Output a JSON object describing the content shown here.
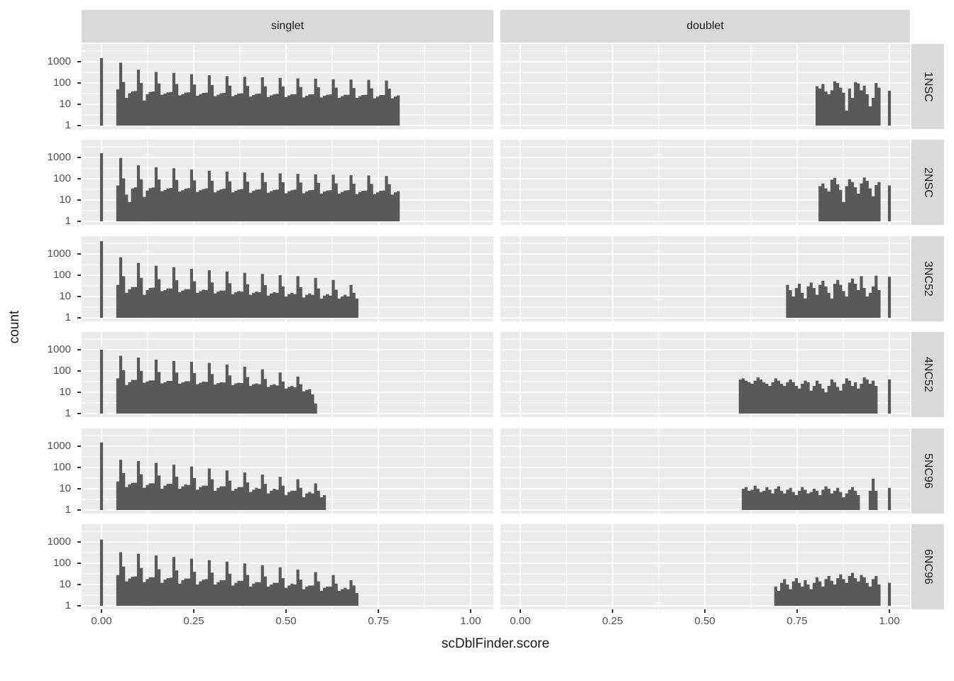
{
  "colors": {
    "bar_fill": "#595959",
    "panel_background": "#EBEBEB",
    "strip_background": "#D9D9D9",
    "gridline": "#FFFFFF",
    "axis_text": "#4D4D4D",
    "tick_mark": "#333333",
    "title_text": "#1A1A1A"
  },
  "chart_data": {
    "type": "bar",
    "subtype": "faceted_histogram",
    "title": "",
    "x_label": "scDblFinder.score",
    "y_label": "count",
    "y_scale": "log10",
    "grid": "on",
    "legend": "none",
    "x_axis": {
      "tick_labels": [
        "0.00",
        "0.25",
        "0.50",
        "0.75",
        "1.00"
      ],
      "tick_values": [
        0,
        0.25,
        0.5,
        0.75,
        1.0
      ],
      "range": [
        -0.054,
        1.056
      ]
    },
    "y_axis": {
      "tick_labels": [
        "1000",
        "100",
        "10",
        "1"
      ],
      "tick_values": [
        1000,
        100,
        10,
        1
      ],
      "range_log10": [
        -0.17,
        3.83
      ]
    },
    "facet_columns": [
      "singlet",
      "doublet"
    ],
    "facet_rows": [
      "1NSC",
      "2NSC",
      "3NC52",
      "4NC52",
      "5NC96",
      "6NC96"
    ],
    "binwidth": 0.008,
    "panels": [
      {
        "row": "1NSC",
        "col": "singlet",
        "bar_at_zero": 1500,
        "start": 0.04,
        "bar_at_one": null,
        "counts": [
          50,
          900,
          110,
          20,
          33,
          40,
          42,
          420,
          100,
          15,
          30,
          38,
          40,
          330,
          95,
          28,
          32,
          36,
          38,
          300,
          90,
          26,
          30,
          35,
          36,
          260,
          85,
          25,
          30,
          34,
          35,
          230,
          80,
          24,
          28,
          33,
          34,
          210,
          75,
          24,
          28,
          32,
          33,
          195,
          72,
          23,
          27,
          31,
          32,
          185,
          70,
          22,
          26,
          30,
          31,
          175,
          68,
          22,
          26,
          30,
          30,
          165,
          65,
          21,
          25,
          29,
          30,
          160,
          63,
          21,
          25,
          28,
          29,
          150,
          60,
          20,
          24,
          28,
          28,
          145,
          58,
          20,
          24,
          27,
          28,
          140,
          56,
          19,
          23,
          27,
          27,
          130,
          54,
          19,
          23,
          26
        ]
      },
      {
        "row": "1NSC",
        "col": "doublet",
        "bar_at_zero": null,
        "start": 0.8,
        "bar_at_one": 43,
        "counts": [
          70,
          55,
          90,
          40,
          30,
          45,
          120,
          100,
          60,
          35,
          5,
          55,
          20,
          110,
          95,
          45,
          75,
          30,
          8,
          20,
          100,
          60
        ]
      },
      {
        "row": "2NSC",
        "col": "singlet",
        "bar_at_zero": 1600,
        "start": 0.04,
        "bar_at_one": null,
        "counts": [
          48,
          950,
          105,
          18,
          8,
          35,
          40,
          430,
          95,
          14,
          28,
          36,
          39,
          340,
          92,
          26,
          30,
          35,
          37,
          310,
          88,
          25,
          29,
          34,
          36,
          270,
          84,
          24,
          29,
          33,
          35,
          240,
          80,
          23,
          28,
          32,
          34,
          215,
          76,
          23,
          27,
          31,
          33,
          200,
          73,
          22,
          27,
          31,
          32,
          190,
          70,
          22,
          26,
          30,
          31,
          180,
          68,
          21,
          26,
          29,
          31,
          170,
          66,
          21,
          25,
          29,
          30,
          162,
          64,
          20,
          25,
          28,
          29,
          155,
          61,
          20,
          24,
          28,
          29,
          148,
          59,
          19,
          24,
          27,
          28,
          142,
          57,
          19,
          23,
          27,
          28,
          135,
          55,
          18,
          23,
          26
        ]
      },
      {
        "row": "2NSC",
        "col": "doublet",
        "bar_at_zero": null,
        "start": 0.808,
        "bar_at_one": 48,
        "counts": [
          45,
          60,
          35,
          25,
          90,
          110,
          55,
          30,
          8,
          45,
          95,
          70,
          40,
          20,
          60,
          115,
          80,
          35,
          15,
          50,
          70
        ]
      },
      {
        "row": "3NC52",
        "col": "singlet",
        "bar_at_zero": 4000,
        "start": 0.04,
        "bar_at_one": null,
        "counts": [
          35,
          700,
          90,
          15,
          22,
          28,
          28,
          380,
          75,
          12,
          20,
          25,
          26,
          280,
          65,
          18,
          20,
          24,
          24,
          240,
          58,
          16,
          19,
          22,
          22,
          200,
          52,
          15,
          18,
          21,
          20,
          170,
          46,
          14,
          17,
          19,
          19,
          150,
          42,
          13,
          16,
          18,
          17,
          130,
          38,
          12,
          15,
          17,
          16,
          115,
          34,
          11,
          14,
          16,
          15,
          100,
          30,
          10,
          13,
          15,
          13,
          90,
          27,
          9,
          12,
          14,
          12,
          75,
          24,
          8,
          11,
          13,
          11,
          60,
          21,
          8,
          10,
          12,
          10,
          35,
          15,
          8
        ]
      },
      {
        "row": "3NC52",
        "col": "doublet",
        "bar_at_zero": null,
        "start": 0.72,
        "bar_at_one": 85,
        "counts": [
          35,
          20,
          10,
          25,
          40,
          15,
          8,
          30,
          45,
          25,
          12,
          35,
          55,
          30,
          15,
          8,
          40,
          60,
          35,
          18,
          10,
          45,
          70,
          40,
          20,
          90,
          25,
          10,
          15,
          30,
          95,
          20
        ]
      },
      {
        "row": "4NC52",
        "col": "singlet",
        "bar_at_zero": 1000,
        "start": 0.04,
        "bar_at_one": null,
        "counts": [
          45,
          520,
          110,
          22,
          30,
          38,
          38,
          430,
          100,
          28,
          32,
          36,
          36,
          340,
          90,
          26,
          30,
          34,
          34,
          300,
          85,
          25,
          29,
          33,
          33,
          270,
          80,
          24,
          28,
          32,
          31,
          240,
          72,
          23,
          27,
          30,
          29,
          200,
          62,
          22,
          26,
          28,
          27,
          160,
          52,
          20,
          24,
          26,
          24,
          120,
          42,
          18,
          22,
          24,
          21,
          85,
          32,
          15,
          18,
          20,
          17,
          55,
          24,
          11,
          13,
          14,
          8,
          3
        ]
      },
      {
        "row": "4NC52",
        "col": "doublet",
        "bar_at_zero": null,
        "start": 0.592,
        "bar_at_one": 40,
        "counts": [
          40,
          45,
          35,
          30,
          25,
          35,
          50,
          40,
          30,
          25,
          20,
          30,
          45,
          35,
          25,
          20,
          30,
          40,
          30,
          20,
          15,
          25,
          35,
          30,
          12,
          20,
          35,
          25,
          15,
          10,
          20,
          40,
          30,
          18,
          12,
          25,
          45,
          35,
          20,
          30,
          15,
          25,
          50,
          40,
          25,
          35,
          20
        ]
      },
      {
        "row": "5NC96",
        "col": "singlet",
        "bar_at_zero": 1500,
        "start": 0.04,
        "bar_at_one": null,
        "counts": [
          22,
          230,
          55,
          12,
          16,
          19,
          19,
          200,
          48,
          11,
          15,
          18,
          18,
          165,
          42,
          10,
          14,
          17,
          17,
          135,
          37,
          10,
          13,
          16,
          15,
          110,
          32,
          9,
          12,
          14,
          14,
          90,
          28,
          8,
          11,
          13,
          13,
          72,
          24,
          8,
          10,
          12,
          12,
          58,
          20,
          7,
          9,
          11,
          10,
          46,
          17,
          6,
          8,
          10,
          9,
          36,
          14,
          5,
          7,
          8,
          8,
          28,
          11,
          4,
          6,
          7,
          6,
          18,
          8,
          4,
          5
        ]
      },
      {
        "row": "5NC96",
        "col": "doublet",
        "bar_at_zero": null,
        "start": 0.6,
        "bar_at_one": 11,
        "counts": [
          10,
          12,
          8,
          9,
          14,
          10,
          7,
          8,
          12,
          9,
          6,
          10,
          13,
          8,
          6,
          9,
          11,
          7,
          5,
          8,
          12,
          9,
          6,
          7,
          10,
          8,
          5,
          9,
          13,
          10,
          6,
          8,
          11,
          7,
          4,
          6,
          9,
          12,
          8,
          5,
          0,
          0,
          0,
          8,
          30,
          8
        ]
      },
      {
        "row": "6NC96",
        "col": "singlet",
        "bar_at_zero": 1300,
        "start": 0.04,
        "bar_at_one": null,
        "counts": [
          28,
          330,
          70,
          14,
          19,
          23,
          24,
          280,
          60,
          13,
          18,
          22,
          22,
          230,
          52,
          12,
          17,
          20,
          21,
          195,
          46,
          11,
          16,
          19,
          19,
          165,
          40,
          10,
          14,
          17,
          18,
          140,
          36,
          10,
          13,
          16,
          16,
          118,
          32,
          9,
          12,
          15,
          15,
          98,
          28,
          8,
          11,
          13,
          13,
          80,
          24,
          8,
          10,
          12,
          12,
          64,
          20,
          7,
          9,
          11,
          10,
          50,
          17,
          6,
          8,
          9,
          9,
          38,
          14,
          5,
          7,
          8,
          8,
          28,
          11,
          5,
          6,
          7,
          6,
          16,
          9,
          4
        ]
      },
      {
        "row": "6NC96",
        "col": "doublet",
        "bar_at_zero": null,
        "start": 0.688,
        "bar_at_one": 12,
        "counts": [
          8,
          5,
          12,
          18,
          10,
          6,
          14,
          20,
          12,
          8,
          16,
          10,
          6,
          12,
          22,
          14,
          8,
          18,
          25,
          15,
          10,
          20,
          30,
          18,
          12,
          25,
          35,
          20,
          14,
          28,
          22,
          12,
          8,
          18,
          25,
          10
        ]
      }
    ]
  }
}
